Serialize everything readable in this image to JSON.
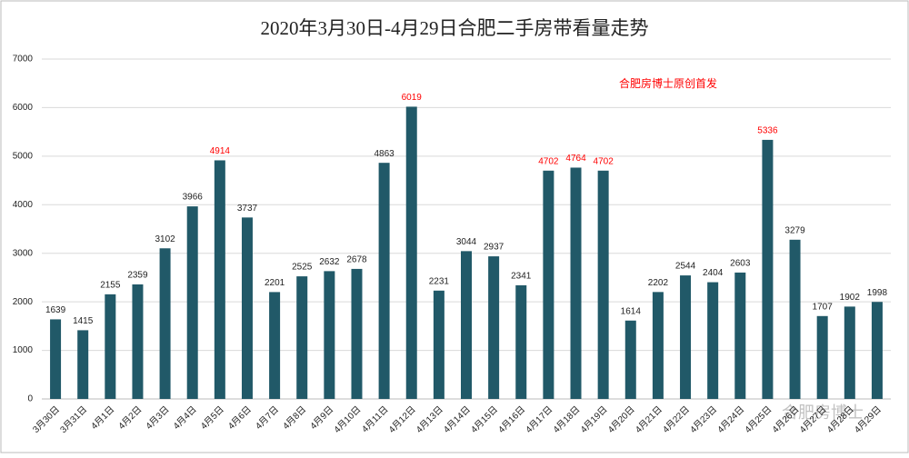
{
  "chart_data": {
    "type": "bar",
    "title": "2020年3月30日-4月29日合肥二手房带看量走势",
    "annotation": "合肥房博士原创首发",
    "watermark": "合肥房博士",
    "categories": [
      "3月30日",
      "3月31日",
      "4月1日",
      "4月2日",
      "4月3日",
      "4月4日",
      "4月5日",
      "4月6日",
      "4月7日",
      "4月8日",
      "4月9日",
      "4月10日",
      "4月11日",
      "4月12日",
      "4月13日",
      "4月14日",
      "4月15日",
      "4月16日",
      "4月17日",
      "4月18日",
      "4月19日",
      "4月20日",
      "4月21日",
      "4月22日",
      "4月23日",
      "4月24日",
      "4月25日",
      "4月26日",
      "4月27日",
      "4月28日",
      "4月29日"
    ],
    "values": [
      1639,
      1415,
      2155,
      2359,
      3102,
      3966,
      4914,
      3737,
      2201,
      2525,
      2632,
      2678,
      4863,
      6019,
      2231,
      3044,
      2937,
      2341,
      4702,
      4764,
      4702,
      1614,
      2202,
      2544,
      2404,
      2603,
      5336,
      3279,
      1707,
      1902,
      1998
    ],
    "color": "#215968",
    "label_color": "#222222",
    "highlight_color": "#ff0000",
    "highlight_labels": [
      "4914",
      "6019",
      "4764",
      "4702",
      "5336"
    ],
    "ylim": [
      0,
      7000
    ],
    "yticks": [
      0,
      1000,
      2000,
      3000,
      4000,
      5000,
      6000,
      7000
    ],
    "grid": true
  }
}
